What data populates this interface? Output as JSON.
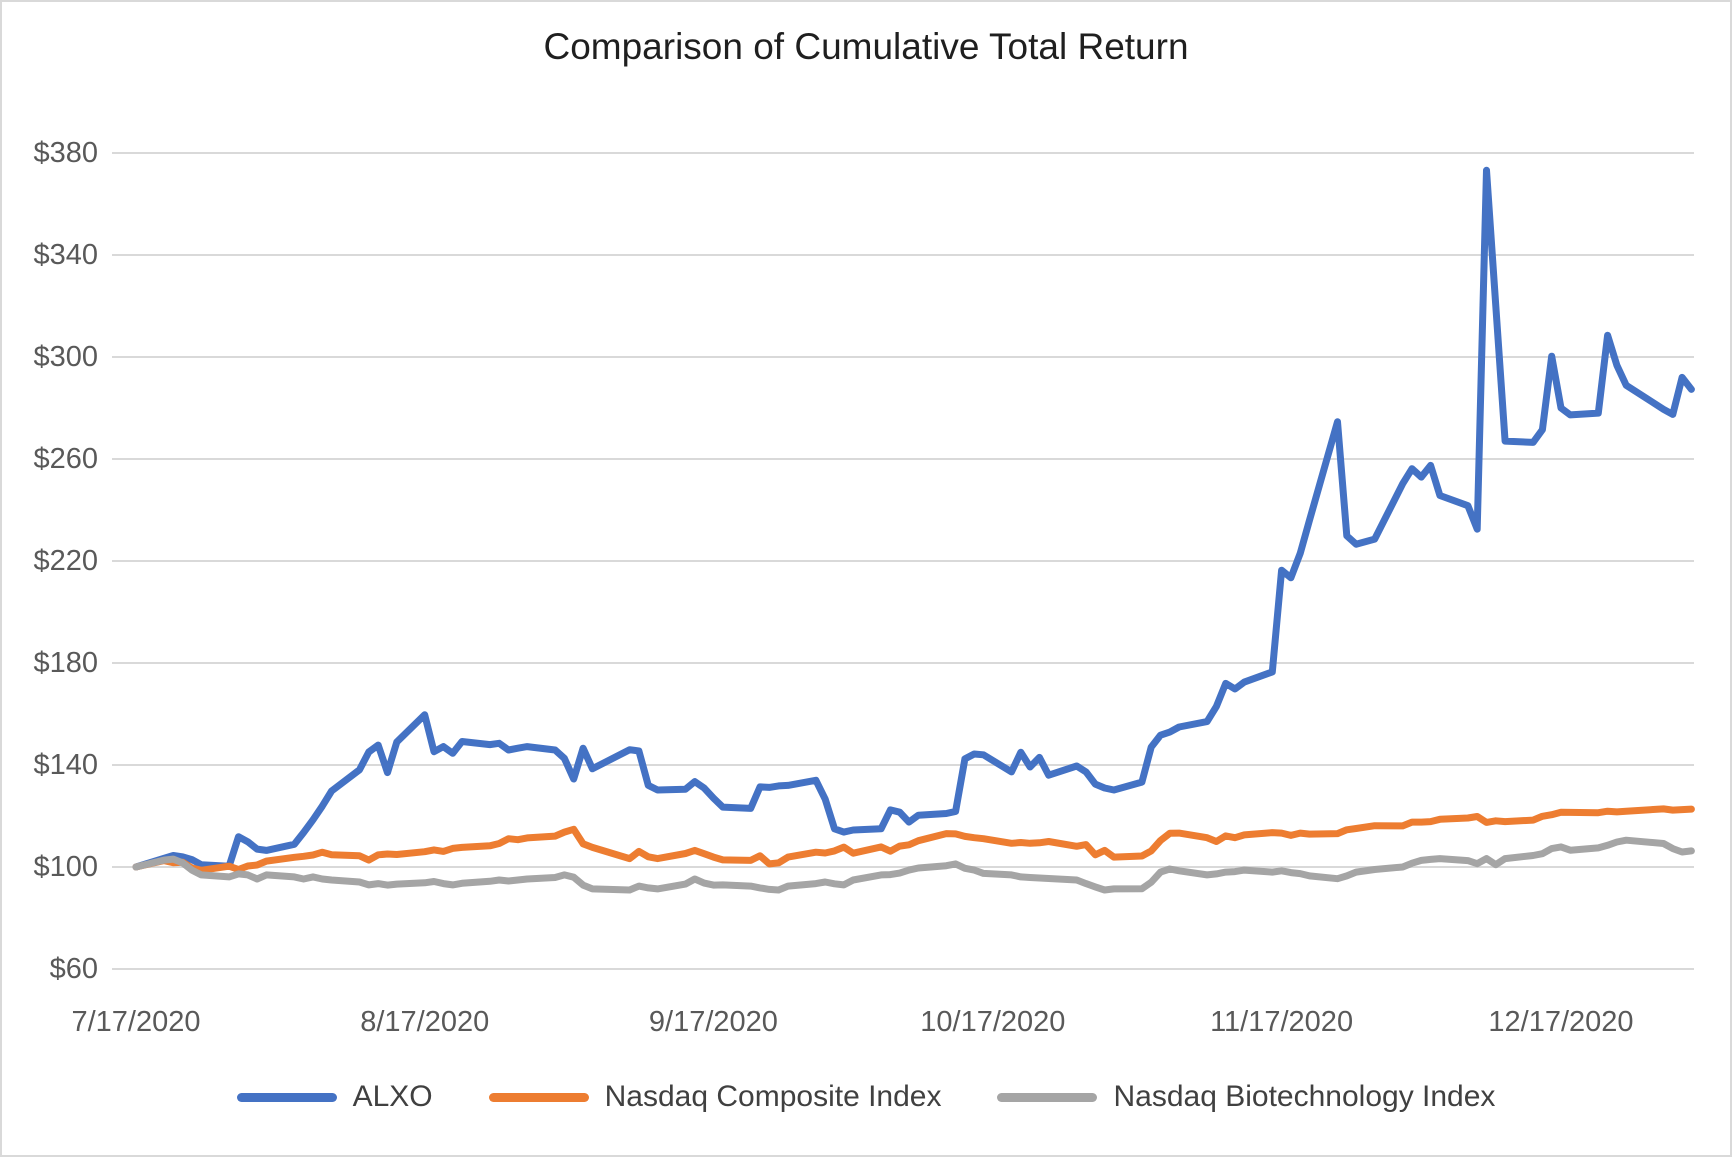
{
  "chart_data": {
    "type": "line",
    "title": "Comparison of Cumulative Total Return",
    "xlabel": "",
    "ylabel": "",
    "ylim": [
      60,
      380
    ],
    "grid": "horizontal",
    "legend_position": "bottom",
    "background_color": "#ffffff",
    "gridline_color": "#d9d9d9",
    "axis_label_color": "#595959",
    "y_ticks": [
      {
        "label": "$380",
        "value": 380
      },
      {
        "label": "$340",
        "value": 340
      },
      {
        "label": "$300",
        "value": 300
      },
      {
        "label": "$260",
        "value": 260
      },
      {
        "label": "$220",
        "value": 220
      },
      {
        "label": "$180",
        "value": 180
      },
      {
        "label": "$140",
        "value": 140
      },
      {
        "label": "$100",
        "value": 100
      },
      {
        "label": "$60",
        "value": 60
      }
    ],
    "x_tick_labels": [
      "7/17/2020",
      "8/17/2020",
      "9/17/2020",
      "10/17/2020",
      "11/17/2020",
      "12/17/2020"
    ],
    "dates": [
      "2020-07-17",
      "2020-07-20",
      "2020-07-21",
      "2020-07-22",
      "2020-07-23",
      "2020-07-24",
      "2020-07-27",
      "2020-07-28",
      "2020-07-29",
      "2020-07-30",
      "2020-07-31",
      "2020-08-03",
      "2020-08-04",
      "2020-08-05",
      "2020-08-06",
      "2020-08-07",
      "2020-08-10",
      "2020-08-11",
      "2020-08-12",
      "2020-08-13",
      "2020-08-14",
      "2020-08-17",
      "2020-08-18",
      "2020-08-19",
      "2020-08-20",
      "2020-08-21",
      "2020-08-24",
      "2020-08-25",
      "2020-08-26",
      "2020-08-27",
      "2020-08-28",
      "2020-08-31",
      "2020-09-01",
      "2020-09-02",
      "2020-09-03",
      "2020-09-04",
      "2020-09-08",
      "2020-09-09",
      "2020-09-10",
      "2020-09-11",
      "2020-09-14",
      "2020-09-15",
      "2020-09-16",
      "2020-09-17",
      "2020-09-18",
      "2020-09-21",
      "2020-09-22",
      "2020-09-23",
      "2020-09-24",
      "2020-09-25",
      "2020-09-28",
      "2020-09-29",
      "2020-09-30",
      "2020-10-01",
      "2020-10-02",
      "2020-10-05",
      "2020-10-06",
      "2020-10-07",
      "2020-10-08",
      "2020-10-09",
      "2020-10-12",
      "2020-10-13",
      "2020-10-14",
      "2020-10-15",
      "2020-10-16",
      "2020-10-19",
      "2020-10-20",
      "2020-10-21",
      "2020-10-22",
      "2020-10-23",
      "2020-10-26",
      "2020-10-27",
      "2020-10-28",
      "2020-10-29",
      "2020-10-30",
      "2020-11-02",
      "2020-11-03",
      "2020-11-04",
      "2020-11-05",
      "2020-11-06",
      "2020-11-09",
      "2020-11-10",
      "2020-11-11",
      "2020-11-12",
      "2020-11-13",
      "2020-11-16",
      "2020-11-17",
      "2020-11-18",
      "2020-11-19",
      "2020-11-20",
      "2020-11-23",
      "2020-11-24",
      "2020-11-25",
      "2020-11-27",
      "2020-11-30",
      "2020-12-01",
      "2020-12-02",
      "2020-12-03",
      "2020-12-04",
      "2020-12-07",
      "2020-12-08",
      "2020-12-09",
      "2020-12-10",
      "2020-12-11",
      "2020-12-14",
      "2020-12-15",
      "2020-12-16",
      "2020-12-17",
      "2020-12-18",
      "2020-12-21",
      "2020-12-22",
      "2020-12-23",
      "2020-12-24",
      "2020-12-28",
      "2020-12-29",
      "2020-12-30",
      "2020-12-31"
    ],
    "series": [
      {
        "name": "ALXO",
        "color": "#4472c4",
        "values": [
          100.0,
          103.4,
          104.5,
          104.0,
          102.9,
          100.9,
          100.3,
          111.9,
          109.9,
          107.0,
          106.5,
          108.9,
          113.5,
          118.5,
          123.9,
          129.8,
          138.1,
          145.1,
          147.8,
          137.0,
          149.0,
          159.7,
          145.2,
          147.2,
          144.6,
          149.2,
          148.0,
          148.5,
          145.9,
          146.6,
          147.2,
          145.9,
          142.6,
          134.5,
          146.6,
          138.5,
          146.0,
          145.5,
          132.0,
          130.2,
          130.5,
          133.5,
          131.0,
          127.0,
          123.5,
          123.0,
          131.4,
          131.2,
          131.8,
          132.0,
          134.0,
          126.6,
          115.0,
          113.7,
          114.5,
          115.0,
          122.4,
          121.5,
          117.6,
          120.3,
          121.0,
          121.8,
          142.4,
          144.3,
          144.0,
          137.3,
          145.0,
          139.2,
          143.0,
          136.0,
          139.6,
          137.3,
          132.5,
          131.0,
          130.2,
          133.3,
          147.0,
          151.7,
          152.9,
          154.9,
          157.0,
          163.0,
          172.0,
          169.8,
          172.5,
          176.5,
          216.4,
          213.4,
          223.0,
          236.0,
          274.6,
          229.9,
          226.6,
          228.6,
          250.3,
          256.2,
          252.9,
          257.5,
          245.7,
          241.7,
          232.5,
          373.2,
          320.0,
          267.0,
          266.5,
          271.5,
          300.3,
          280.0,
          277.3,
          278.0,
          308.5,
          296.7,
          288.9,
          279.5,
          277.5,
          292.0,
          287.3
        ]
      },
      {
        "name": "Nasdaq Composite Index",
        "color": "#ed7d31",
        "values": [
          100.0,
          102.5,
          101.7,
          101.9,
          99.6,
          98.7,
          100.3,
          99.0,
          100.4,
          100.8,
          102.3,
          103.8,
          104.2,
          104.7,
          105.8,
          104.8,
          104.4,
          102.7,
          104.8,
          105.1,
          104.9,
          106.0,
          106.7,
          106.1,
          107.3,
          107.7,
          108.3,
          109.2,
          111.1,
          110.7,
          111.4,
          112.1,
          113.7,
          114.8,
          109.1,
          107.7,
          103.3,
          106.1,
          104.0,
          103.3,
          105.3,
          106.5,
          105.2,
          103.9,
          102.8,
          102.6,
          104.4,
          101.2,
          101.6,
          103.9,
          105.8,
          105.5,
          106.3,
          107.8,
          105.4,
          107.9,
          106.2,
          108.2,
          108.7,
          110.3,
          113.1,
          113.0,
          112.0,
          111.5,
          111.1,
          109.3,
          109.6,
          109.3,
          109.5,
          110.0,
          108.1,
          108.8,
          104.8,
          106.5,
          103.9,
          104.3,
          106.3,
          110.4,
          113.2,
          113.3,
          111.5,
          110.0,
          112.2,
          111.5,
          112.6,
          113.5,
          113.3,
          112.4,
          113.3,
          112.9,
          113.1,
          114.6,
          115.1,
          116.2,
          116.1,
          117.6,
          117.6,
          117.8,
          118.7,
          119.2,
          119.8,
          117.5,
          118.1,
          117.8,
          118.4,
          119.9,
          120.5,
          121.5,
          121.4,
          121.3,
          121.9,
          121.6,
          121.9,
          122.8,
          122.3,
          122.5,
          122.7
        ]
      },
      {
        "name": "Nasdaq Biotechnology Index",
        "color": "#a5a5a5",
        "values": [
          100.0,
          102.7,
          103.1,
          101.6,
          98.8,
          96.9,
          96.1,
          97.3,
          96.9,
          95.3,
          96.9,
          96.1,
          95.3,
          96.1,
          95.3,
          94.9,
          94.1,
          93.0,
          93.5,
          92.9,
          93.3,
          93.8,
          94.3,
          93.5,
          93.0,
          93.6,
          94.4,
          94.9,
          94.5,
          94.9,
          95.3,
          95.9,
          96.9,
          96.0,
          92.9,
          91.4,
          91.0,
          92.5,
          91.8,
          91.4,
          93.3,
          95.3,
          93.7,
          92.9,
          93.0,
          92.5,
          91.8,
          91.2,
          91.0,
          92.5,
          93.5,
          94.1,
          93.4,
          93.0,
          94.9,
          96.9,
          97.0,
          97.6,
          98.8,
          99.6,
          100.5,
          101.2,
          99.5,
          98.8,
          97.5,
          96.9,
          96.1,
          95.9,
          95.7,
          95.5,
          94.9,
          93.5,
          92.2,
          91.0,
          91.4,
          91.5,
          94.0,
          98.0,
          99.2,
          98.5,
          96.9,
          97.3,
          98.0,
          98.2,
          98.8,
          98.0,
          98.5,
          97.8,
          97.4,
          96.5,
          95.4,
          96.5,
          98.0,
          99.0,
          100.0,
          101.5,
          102.6,
          103.0,
          103.3,
          102.5,
          101.3,
          103.3,
          100.9,
          103.3,
          104.5,
          105.2,
          107.2,
          107.9,
          106.6,
          107.5,
          108.5,
          109.8,
          110.5,
          109.2,
          107.2,
          105.9,
          106.3
        ]
      }
    ]
  }
}
